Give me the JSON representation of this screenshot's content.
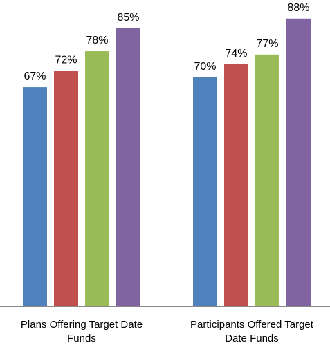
{
  "chart_data": {
    "type": "bar",
    "categories": [
      [
        "Plans Offering Target Date",
        "Funds"
      ],
      [
        "Participants Offered Target",
        "Date Funds"
      ]
    ],
    "series": [
      {
        "values": [
          67,
          70
        ],
        "labels": [
          "67%",
          "70%"
        ],
        "color": "#4f81bd"
      },
      {
        "values": [
          72,
          74
        ],
        "labels": [
          "72%",
          "74%"
        ],
        "color": "#c0504d"
      },
      {
        "values": [
          78,
          77
        ],
        "labels": [
          "78%",
          "77%"
        ],
        "color": "#9bbb59"
      },
      {
        "values": [
          85,
          88
        ],
        "labels": [
          "85%",
          "88%"
        ],
        "color": "#8064a2"
      }
    ],
    "ylim": [
      0,
      100
    ],
    "grid": false,
    "axis_color": "#888888"
  }
}
